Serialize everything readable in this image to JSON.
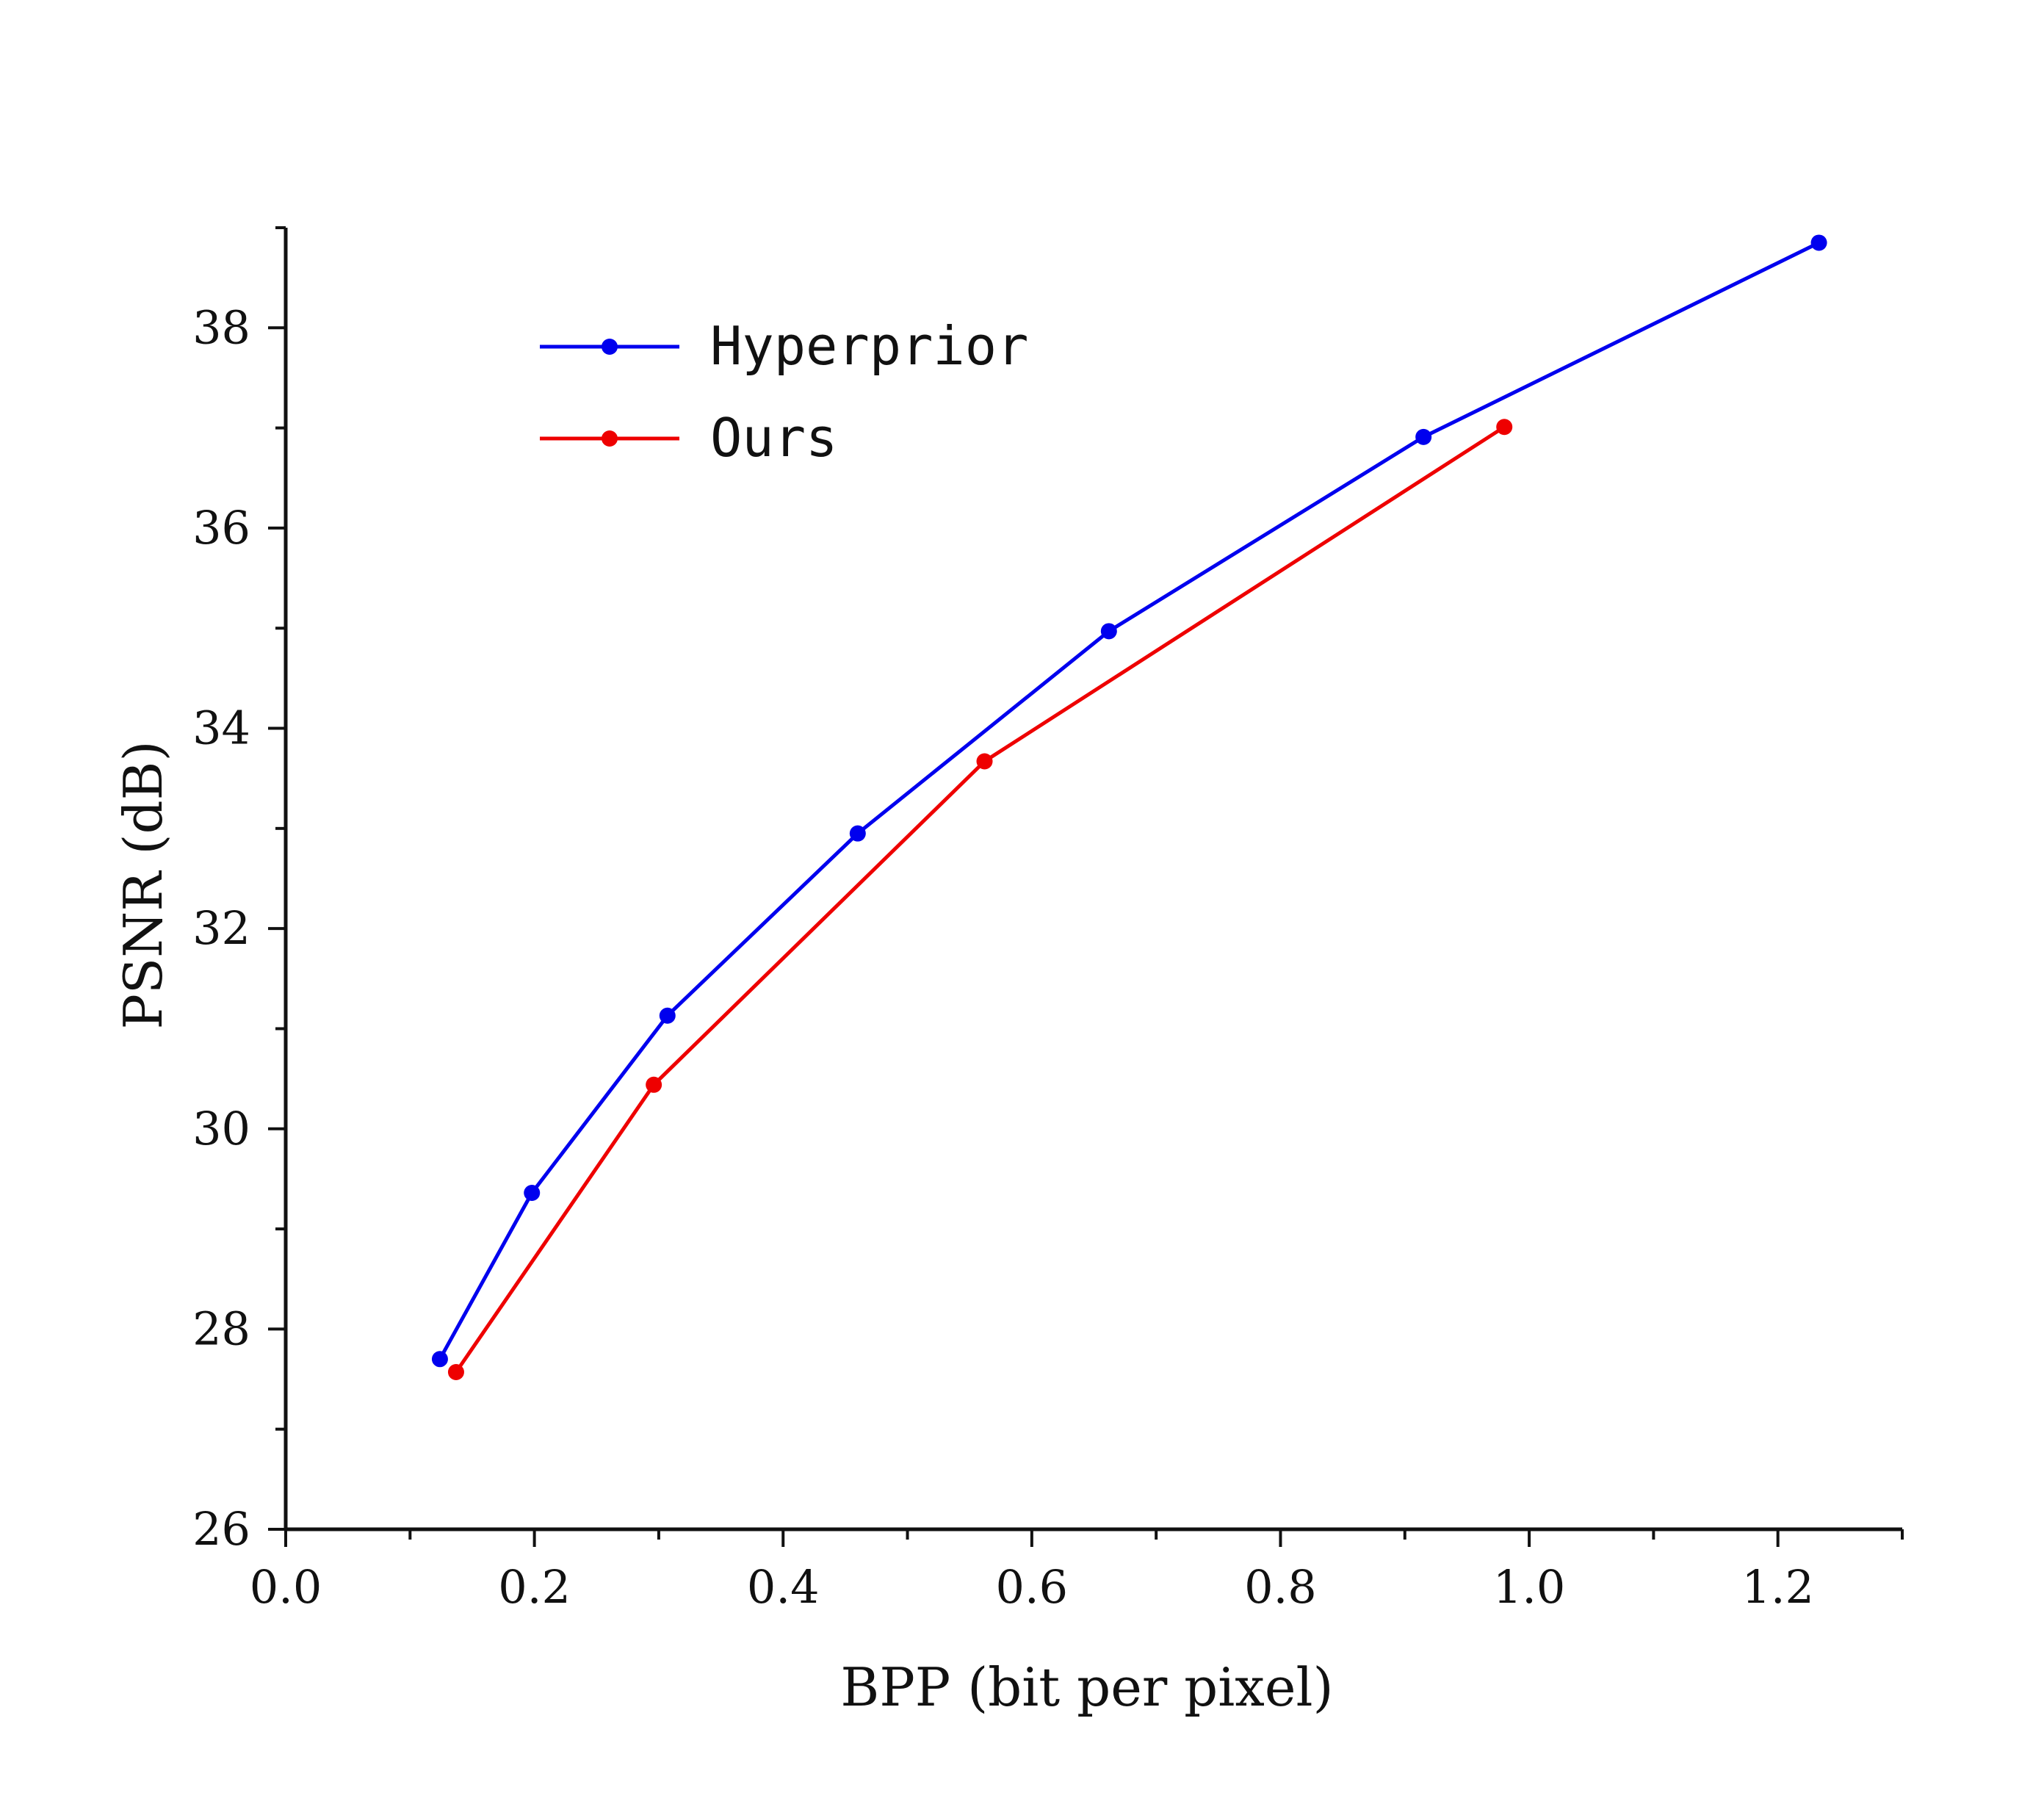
{
  "chart_data": {
    "type": "line",
    "xlabel": "BPP (bit per pixel)",
    "ylabel": "PSNR (dB)",
    "xlim": [
      0.0,
      1.3
    ],
    "ylim": [
      26,
      39
    ],
    "x_ticks": [
      "0.0",
      "0.2",
      "0.4",
      "0.6",
      "0.8",
      "1.0",
      "1.2"
    ],
    "y_ticks": [
      "26",
      "28",
      "30",
      "32",
      "34",
      "36",
      "38"
    ],
    "grid": false,
    "legend_position": "top-left",
    "series": [
      {
        "name": "Hyperprior",
        "color": "#0000ee",
        "x": [
          0.124,
          0.198,
          0.307,
          0.46,
          0.662,
          0.915,
          1.233
        ],
        "y": [
          27.7,
          29.36,
          31.13,
          32.95,
          34.97,
          36.91,
          38.85
        ]
      },
      {
        "name": "Ours",
        "color": "#ee0000",
        "x": [
          0.137,
          0.296,
          0.562,
          0.98
        ],
        "y": [
          27.57,
          30.44,
          33.67,
          37.01
        ]
      }
    ]
  }
}
